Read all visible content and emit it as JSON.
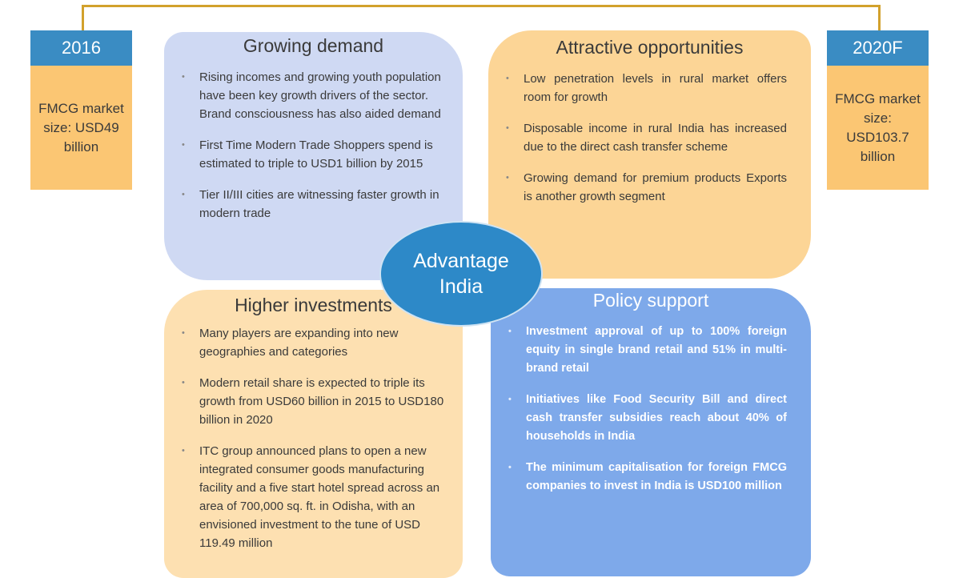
{
  "years": [
    {
      "label": "2016",
      "text": "FMCG market size: USD49 billion"
    },
    {
      "label": "2020F",
      "text": "FMCG market size: USD103.7 billion"
    }
  ],
  "quadrants": [
    {
      "title": "Growing demand",
      "bullets": [
        "Rising incomes and growing youth population have been key growth drivers of the sector. Brand consciousness has also aided demand",
        "First Time Modern Trade Shoppers spend is estimated to triple to USD1 billion by 2015",
        "Tier II/III cities are witnessing faster growth in modern trade"
      ]
    },
    {
      "title": "Attractive opportunities",
      "bullets": [
        "Low penetration levels in rural market offers room for growth",
        "Disposable income in rural India has increased due to the direct cash transfer scheme",
        "Growing demand for premium products Exports is another growth segment"
      ]
    },
    {
      "title": "Higher investments",
      "bullets": [
        "Many players are expanding into new geographies and categories",
        "Modern retail share is expected to triple its growth from USD60 billion in 2015 to USD180 billion in 2020",
        "ITC group announced plans to open a new integrated consumer goods manufacturing facility and a five start hotel spread across an area of 700,000 sq. ft. in Odisha, with an envisioned investment to the tune of USD 119.49 million"
      ]
    },
    {
      "title": "Policy support",
      "bullets": [
        "Investment approval of up to 100% foreign equity in single brand retail and 51% in multi-brand retail",
        "Initiatives like Food Security Bill and direct cash transfer subsidies reach about 40% of households in India",
        "The minimum capitalisation for foreign FMCG companies to invest in India is USD100 million"
      ]
    }
  ],
  "center": "Advantage India"
}
